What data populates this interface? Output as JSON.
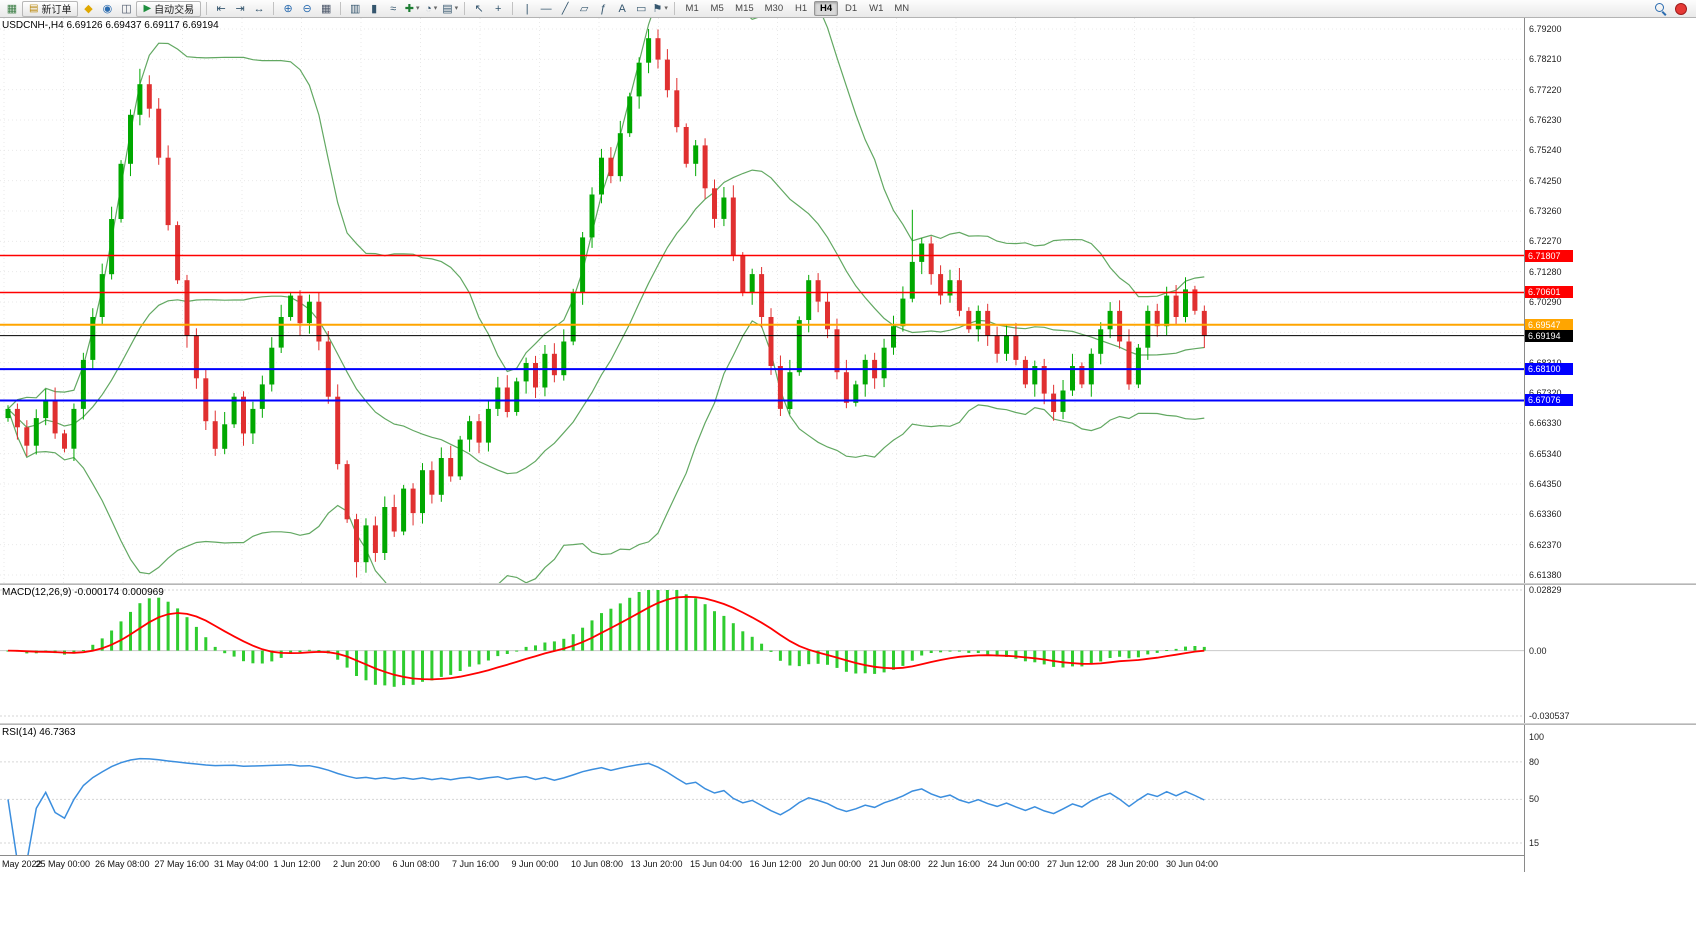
{
  "toolbar": {
    "items": [
      {
        "kind": "icon",
        "name": "new-chart-icon",
        "glyph": "▦",
        "color": "#3a7d44"
      },
      {
        "kind": "button",
        "name": "new-order-button",
        "label": "新订单",
        "glyph": "▤",
        "color": "#b8860b"
      },
      {
        "kind": "icon",
        "name": "profiles-icon",
        "glyph": "◆",
        "color": "#e0a800"
      },
      {
        "kind": "icon",
        "name": "market-watch-icon",
        "glyph": "◉",
        "color": "#2b6cb0"
      },
      {
        "kind": "icon",
        "name": "navigator-icon",
        "glyph": "◫",
        "color": "#4a5568"
      },
      {
        "kind": "button",
        "name": "auto-trading-button",
        "label": "自动交易",
        "glyph": "▶",
        "color": "#1e8e3e"
      },
      {
        "kind": "sep"
      },
      {
        "kind": "icon",
        "name": "chart-shift-left-icon",
        "glyph": "⇤"
      },
      {
        "kind": "icon",
        "name": "auto-scroll-icon",
        "glyph": "⇥"
      },
      {
        "kind": "icon",
        "name": "chart-shift-icon",
        "glyph": "↔"
      },
      {
        "kind": "sep"
      },
      {
        "kind": "icon",
        "name": "zoom-in-icon",
        "glyph": "⊕",
        "color": "#2b6cb0"
      },
      {
        "kind": "icon",
        "name": "zoom-out-icon",
        "glyph": "⊖",
        "color": "#2b6cb0"
      },
      {
        "kind": "icon",
        "name": "tile-windows-icon",
        "glyph": "▦",
        "color": "#4a5568"
      },
      {
        "kind": "sep"
      },
      {
        "kind": "icon",
        "name": "bar-chart-icon",
        "glyph": "▥"
      },
      {
        "kind": "icon",
        "name": "candlestick-chart-icon",
        "glyph": "▮"
      },
      {
        "kind": "icon",
        "name": "line-chart-icon",
        "glyph": "≈"
      },
      {
        "kind": "icon",
        "name": "add-indicator-icon",
        "glyph": "✚",
        "color": "#1e7e34",
        "dropdown": true
      },
      {
        "kind": "icon",
        "name": "period-icon",
        "glyph": "◔",
        "dropdown": true
      },
      {
        "kind": "icon",
        "name": "templates-icon",
        "glyph": "▤",
        "dropdown": true
      },
      {
        "kind": "sep"
      },
      {
        "kind": "icon",
        "name": "cursor-icon",
        "glyph": "↖"
      },
      {
        "kind": "icon",
        "name": "crosshair-icon",
        "glyph": "+"
      },
      {
        "kind": "sep"
      },
      {
        "kind": "icon",
        "name": "vertical-line-icon",
        "glyph": "|"
      },
      {
        "kind": "icon",
        "name": "horizontal-line-icon",
        "glyph": "―"
      },
      {
        "kind": "icon",
        "name": "trendline-icon",
        "glyph": "╱"
      },
      {
        "kind": "icon",
        "name": "channel-icon",
        "glyph": "▱"
      },
      {
        "kind": "icon",
        "name": "fibonacci-icon",
        "glyph": "ƒ"
      },
      {
        "kind": "icon",
        "name": "text-icon",
        "glyph": "A"
      },
      {
        "kind": "icon",
        "name": "text-label-icon",
        "glyph": "▭"
      },
      {
        "kind": "icon",
        "name": "arrows-icon",
        "glyph": "⚑",
        "dropdown": true
      },
      {
        "kind": "sep"
      },
      {
        "kind": "timeframes"
      }
    ],
    "timeframes": [
      "M1",
      "M5",
      "M15",
      "M30",
      "H1",
      "H4",
      "D1",
      "W1",
      "MN"
    ],
    "active_timeframe": "H4"
  },
  "chart": {
    "symbol_line": "USDCNH-,H4  6.69126 6.69437 6.69117 6.69194",
    "ohlc": {
      "open": "6.69126",
      "high": "6.69437",
      "low": "6.69117",
      "close": "6.69194"
    },
    "price_axis": [
      "6.79200",
      "6.78210",
      "6.77220",
      "6.76230",
      "6.75240",
      "6.74250",
      "6.73260",
      "6.72270",
      "6.71280",
      "6.70290",
      "6.69300",
      "6.68310",
      "6.67320",
      "6.66330",
      "6.65340",
      "6.64350",
      "6.63360",
      "6.62370",
      "6.61380"
    ],
    "time_axis": [
      "May 2022",
      "25 May 00:00",
      "26 May 08:00",
      "27 May 16:00",
      "31 May 04:00",
      "1 Jun 12:00",
      "2 Jun 20:00",
      "6 Jun 08:00",
      "7 Jun 16:00",
      "9 Jun 00:00",
      "10 Jun 08:00",
      "13 Jun 20:00",
      "15 Jun 04:00",
      "16 Jun 12:00",
      "20 Jun 00:00",
      "21 Jun 08:00",
      "22 Jun 16:00",
      "24 Jun 00:00",
      "27 Jun 12:00",
      "28 Jun 20:00",
      "30 Jun 04:00"
    ]
  },
  "macd": {
    "label": "MACD(12,26,9) -0.000174 0.000969",
    "scale_top": "0.02829",
    "scale_zero": "0.00",
    "scale_bottom": "-0.030537"
  },
  "rsi": {
    "label": "RSI(14) 46.7363",
    "value": 46.7363,
    "scale": [
      {
        "label": "100",
        "value": 100
      },
      {
        "label": "80",
        "value": 80
      },
      {
        "label": "50",
        "value": 50
      },
      {
        "label": "15",
        "value": 15
      }
    ],
    "level_lines": [
      80,
      50,
      15
    ]
  },
  "chart_data": {
    "type": "candlestick",
    "symbol": "USDCNH-",
    "timeframe": "H4",
    "title": "USDCNH-,H4",
    "axis": {
      "price_top": 6.792,
      "price_bottom": 6.6138
    },
    "open_first": 6.665,
    "closes": [
      6.668,
      6.662,
      6.656,
      6.665,
      6.671,
      6.66,
      6.655,
      6.668,
      6.684,
      6.698,
      6.712,
      6.73,
      6.748,
      6.764,
      6.774,
      6.766,
      6.75,
      6.728,
      6.71,
      6.692,
      6.678,
      6.664,
      6.655,
      6.663,
      6.672,
      6.66,
      6.668,
      6.676,
      6.688,
      6.698,
      6.705,
      6.696,
      6.703,
      6.69,
      6.672,
      6.65,
      6.632,
      6.618,
      6.63,
      6.621,
      6.636,
      6.628,
      6.642,
      6.634,
      6.648,
      6.64,
      6.652,
      6.646,
      6.658,
      6.664,
      6.657,
      6.668,
      6.675,
      6.667,
      6.677,
      6.683,
      6.675,
      6.686,
      6.679,
      6.69,
      6.706,
      6.724,
      6.738,
      6.75,
      6.744,
      6.758,
      6.77,
      6.781,
      6.789,
      6.782,
      6.772,
      6.76,
      6.748,
      6.754,
      6.74,
      6.73,
      6.737,
      6.718,
      6.706,
      6.712,
      6.698,
      6.682,
      6.668,
      6.68,
      6.697,
      6.71,
      6.703,
      6.694,
      6.68,
      6.67,
      6.676,
      6.684,
      6.678,
      6.688,
      6.695,
      6.704,
      6.716,
      6.722,
      6.712,
      6.705,
      6.71,
      6.7,
      6.694,
      6.7,
      6.692,
      6.686,
      6.692,
      6.684,
      6.676,
      6.682,
      6.673,
      6.667,
      6.674,
      6.682,
      6.676,
      6.686,
      6.694,
      6.7,
      6.69,
      6.676,
      6.688,
      6.7,
      6.695,
      6.705,
      6.698,
      6.707,
      6.7,
      6.6919
    ],
    "wick_overrides": {
      "14": {
        "high": 6.779
      },
      "37": {
        "low": 6.613
      },
      "68": {
        "high": 6.792
      },
      "96": {
        "high": 6.733
      }
    },
    "indicators": [
      {
        "name": "Bollinger Bands",
        "period": 20,
        "deviation": 2
      },
      {
        "name": "MACD",
        "fast": 12,
        "slow": 26,
        "signal": 9,
        "current_main": -0.000174,
        "current_signal": 0.000969
      },
      {
        "name": "RSI",
        "period": 14,
        "current": 46.7363
      }
    ],
    "levels": [
      {
        "price": 6.71807,
        "label": "6.71807",
        "color_key": "level_red",
        "width": 1.4
      },
      {
        "price": 6.70601,
        "label": "6.70601",
        "color_key": "level_red",
        "width": 1.4
      },
      {
        "price": 6.69547,
        "label": "6.69547",
        "color_key": "level_orange",
        "width": 2
      },
      {
        "price": 6.69194,
        "label": "6.69194",
        "color_key": "current_price",
        "width": 1
      },
      {
        "price": 6.681,
        "label": "6.68100",
        "color_key": "level_blue",
        "width": 2
      },
      {
        "price": 6.67076,
        "label": "6.67076",
        "color_key": "level_blue",
        "width": 2
      }
    ]
  },
  "colors": {
    "bull": "#00A800",
    "bear": "#E03030",
    "bollinger": "#62A862",
    "macd_hist": "#2FCC2F",
    "macd_signal": "#FF0000",
    "rsi_line": "#3B8EDE",
    "level_red": "#FF0000",
    "level_orange": "#FFA500",
    "level_blue": "#0000FF",
    "current_price": "#000000",
    "grid": "#E9E9E9"
  }
}
